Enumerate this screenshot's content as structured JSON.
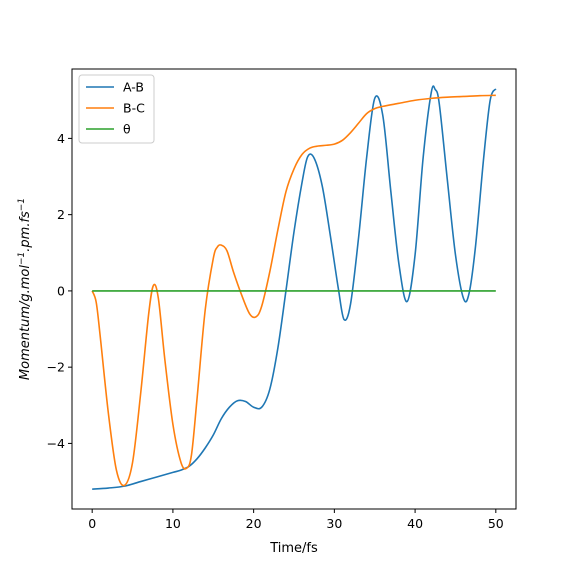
{
  "chart_data": {
    "type": "line",
    "xlabel": "Time/fs",
    "ylabel": {
      "parts": [
        {
          "text": "Momentum/g.mol",
          "sup": false
        },
        {
          "text": "−1",
          "sup": true
        },
        {
          "text": ".pm.fs",
          "sup": false
        },
        {
          "text": "−1",
          "sup": true
        }
      ]
    },
    "xlim": [
      -2.5,
      52.5
    ],
    "ylim": [
      -5.72,
      5.82
    ],
    "xticks": [
      {
        "value": 0,
        "label": "0"
      },
      {
        "value": 10,
        "label": "10"
      },
      {
        "value": 20,
        "label": "20"
      },
      {
        "value": 30,
        "label": "30"
      },
      {
        "value": 40,
        "label": "40"
      },
      {
        "value": 50,
        "label": "50"
      }
    ],
    "yticks": [
      {
        "value": -4,
        "label": "−4"
      },
      {
        "value": -2,
        "label": "−2"
      },
      {
        "value": 0,
        "label": "0"
      },
      {
        "value": 2,
        "label": "2"
      },
      {
        "value": 4,
        "label": "4"
      }
    ],
    "grid": false,
    "legend_position": "top-left",
    "series": [
      {
        "name": "A-B",
        "color": "#1f77b4",
        "x": [
          0,
          2,
          4,
          6,
          8,
          10,
          11,
          12,
          13,
          14,
          15,
          16,
          17,
          18,
          19,
          20,
          21,
          22,
          23,
          24,
          25,
          26,
          26.7,
          27.5,
          28.5,
          29.5,
          30.5,
          31.2,
          32,
          33,
          34,
          35,
          36,
          37,
          38,
          39,
          40,
          41,
          42,
          42.5,
          43,
          44,
          45,
          46,
          46.7,
          47.5,
          48.5,
          49.3,
          50
        ],
        "y": [
          -5.2,
          -5.17,
          -5.12,
          -5.0,
          -4.88,
          -4.76,
          -4.7,
          -4.6,
          -4.4,
          -4.12,
          -3.78,
          -3.35,
          -3.05,
          -2.88,
          -2.9,
          -3.05,
          -3.05,
          -2.58,
          -1.5,
          0.0,
          1.55,
          2.85,
          3.52,
          3.48,
          2.75,
          1.45,
          0.05,
          -0.75,
          -0.35,
          1.4,
          3.5,
          5.05,
          4.6,
          2.6,
          0.7,
          -0.28,
          0.95,
          3.5,
          5.2,
          5.28,
          4.9,
          2.9,
          0.95,
          -0.2,
          -0.05,
          1.2,
          3.5,
          5.0,
          5.3
        ]
      },
      {
        "name": "B-C",
        "color": "#ff7f0e",
        "x": [
          0,
          0.5,
          1,
          2,
          3,
          4,
          5,
          6,
          7,
          7.6,
          8.2,
          9,
          10,
          11,
          11.7,
          12.3,
          13,
          14,
          15,
          15.5,
          16,
          16.7,
          17.5,
          18.5,
          19.5,
          20.3,
          21,
          22,
          23,
          24,
          25,
          26,
          27,
          28,
          29,
          30,
          31,
          32,
          33,
          34,
          35,
          36,
          38,
          40,
          42,
          44,
          46,
          48,
          50
        ],
        "y": [
          0.0,
          -0.3,
          -1.2,
          -3.2,
          -4.7,
          -5.1,
          -4.5,
          -2.7,
          -0.6,
          0.15,
          -0.2,
          -1.8,
          -3.5,
          -4.5,
          -4.65,
          -4.3,
          -2.8,
          -0.5,
          0.85,
          1.15,
          1.2,
          1.05,
          0.5,
          -0.1,
          -0.6,
          -0.68,
          -0.4,
          0.5,
          1.6,
          2.6,
          3.2,
          3.58,
          3.75,
          3.8,
          3.82,
          3.85,
          3.95,
          4.15,
          4.4,
          4.65,
          4.78,
          4.84,
          4.92,
          5.0,
          5.05,
          5.08,
          5.1,
          5.12,
          5.13
        ]
      },
      {
        "name": "θ",
        "color": "#2ca02c",
        "x": [
          0,
          50
        ],
        "y": [
          0,
          0
        ]
      }
    ]
  }
}
